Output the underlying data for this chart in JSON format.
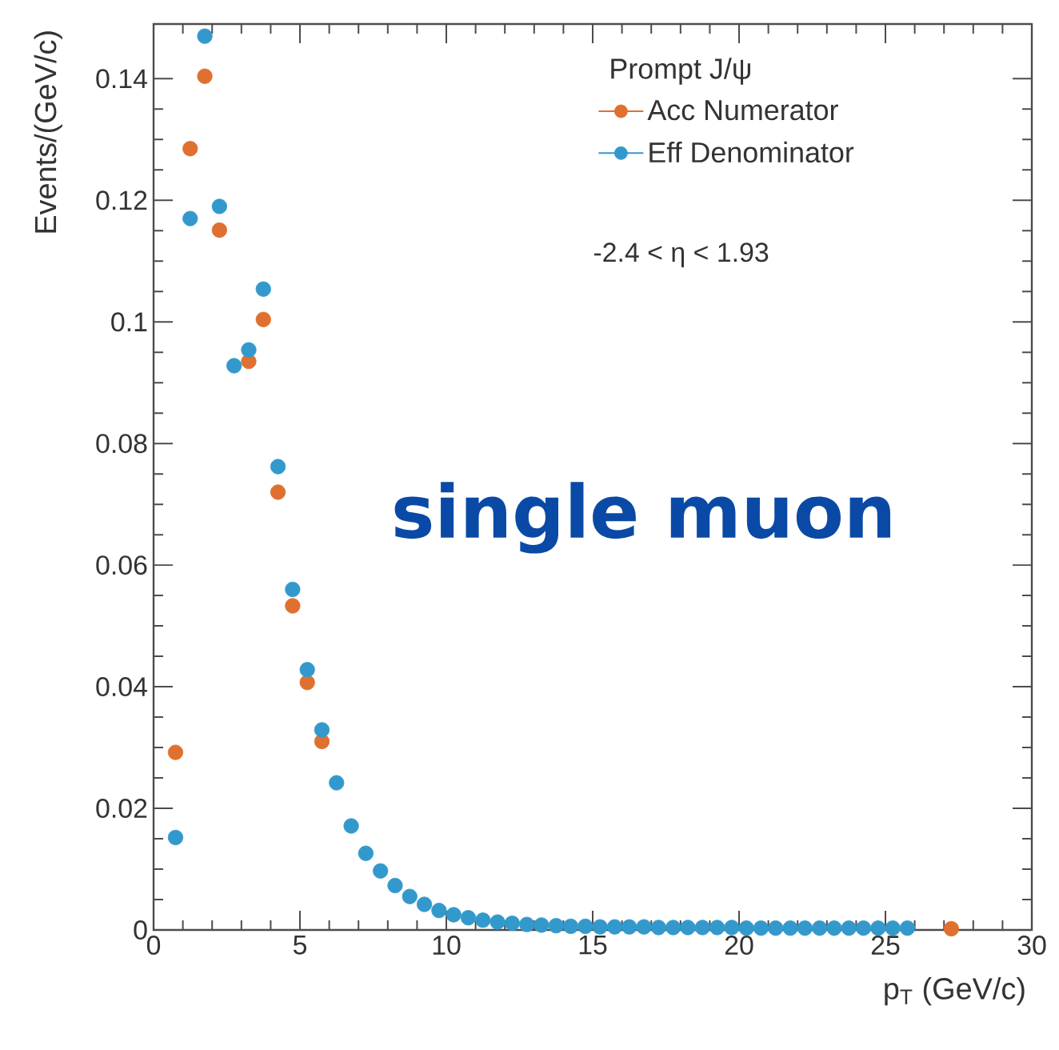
{
  "chart_data": {
    "type": "scatter",
    "xlabel": "p$_{T}$ (GeV/c)",
    "ylabel": "Events/(GeV/c)",
    "legend_title": "Prompt J/ψ",
    "annotations": [
      "-2.4 < η < 1.93",
      "single muon"
    ],
    "xlim": [
      0,
      30
    ],
    "ylim": [
      0,
      0.149
    ],
    "xticks": [
      0,
      5,
      10,
      15,
      20,
      25,
      30
    ],
    "yticks": [
      0,
      0.02,
      0.04,
      0.06,
      0.08,
      0.1,
      0.12,
      0.14
    ],
    "legend": "top right",
    "marker": "circle",
    "grid": false,
    "series": [
      {
        "name": "Acc Numerator",
        "color": "#e07030",
        "x": [
          0.75,
          1.25,
          1.75,
          2.25,
          2.75,
          3.25,
          3.75,
          4.25,
          4.75,
          5.25,
          5.75,
          27.25
        ],
        "values": [
          0.0292,
          0.1285,
          0.1404,
          0.1151,
          null,
          0.0935,
          0.1004,
          0.072,
          0.0533,
          0.0407,
          0.031,
          0.0002
        ]
      },
      {
        "name": "Eff Denominator",
        "color": "#3399cc",
        "x": [
          0.75,
          1.25,
          1.75,
          2.25,
          2.75,
          3.25,
          3.75,
          4.25,
          4.75,
          5.25,
          5.75,
          6.25,
          6.75,
          7.25,
          7.75,
          8.25,
          8.75,
          9.25,
          9.75,
          10.25,
          10.75,
          11.25,
          11.75,
          12.25,
          12.75,
          13.25,
          13.75,
          14.25,
          14.75,
          15.25,
          15.75,
          16.25,
          16.75,
          17.25,
          17.75,
          18.25,
          18.75,
          19.25,
          19.75,
          20.25,
          20.75,
          21.25,
          21.75,
          22.25,
          22.75,
          23.25,
          23.75,
          24.25,
          24.75,
          25.25,
          25.75
        ],
        "values": [
          0.0152,
          0.117,
          0.147,
          0.119,
          0.0928,
          0.0954,
          0.1054,
          0.0762,
          0.056,
          0.0428,
          0.0329,
          0.0242,
          0.0171,
          0.0126,
          0.0097,
          0.0073,
          0.0055,
          0.0042,
          0.0032,
          0.0025,
          0.002,
          0.0016,
          0.0013,
          0.0011,
          0.0009,
          0.0008,
          0.0007,
          0.0006,
          0.0006,
          0.0005,
          0.0005,
          0.0005,
          0.0005,
          0.0004,
          0.0004,
          0.0004,
          0.0004,
          0.0004,
          0.0004,
          0.0003,
          0.0003,
          0.0003,
          0.0003,
          0.0003,
          0.0003,
          0.0003,
          0.0003,
          0.0003,
          0.0003,
          0.0003,
          0.0003
        ]
      }
    ]
  }
}
